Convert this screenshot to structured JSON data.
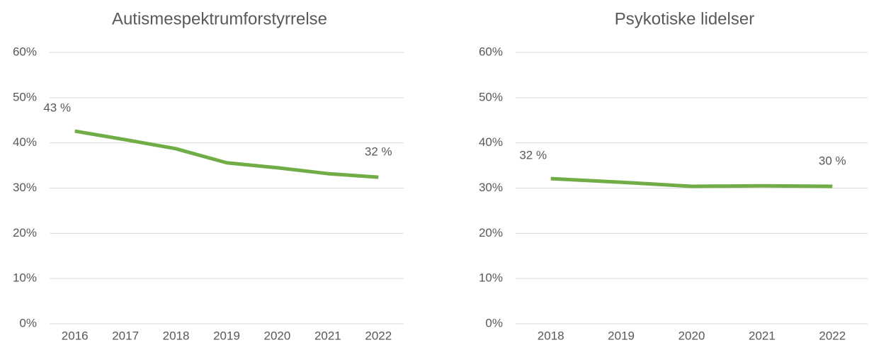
{
  "chart_data": [
    {
      "type": "line",
      "title": "Autismespektrumforstyrrelse",
      "categories": [
        "2016",
        "2017",
        "2018",
        "2019",
        "2020",
        "2021",
        "2022"
      ],
      "values": [
        42.6,
        40.7,
        38.7,
        35.6,
        34.5,
        33.2,
        32.4
      ],
      "value_labels": [
        "43 %",
        null,
        null,
        null,
        null,
        null,
        "32 %"
      ],
      "color": "#70ad47",
      "ylim": [
        0,
        60
      ],
      "yticks": [
        {
          "value": 0,
          "label": "0%"
        },
        {
          "value": 10,
          "label": "10%"
        },
        {
          "value": 20,
          "label": "20%"
        },
        {
          "value": 30,
          "label": "30%"
        },
        {
          "value": 40,
          "label": "40%"
        },
        {
          "value": 50,
          "label": "50%"
        },
        {
          "value": 60,
          "label": "60%"
        }
      ],
      "grid": true
    },
    {
      "type": "line",
      "title": "Psykotiske lidelser",
      "categories": [
        "2018",
        "2019",
        "2020",
        "2021",
        "2022"
      ],
      "values": [
        32.1,
        31.3,
        30.4,
        30.5,
        30.4
      ],
      "value_labels": [
        "32 %",
        null,
        null,
        null,
        "30 %"
      ],
      "color": "#70ad47",
      "ylim": [
        0,
        60
      ],
      "yticks": [
        {
          "value": 0,
          "label": "0%"
        },
        {
          "value": 10,
          "label": "10%"
        },
        {
          "value": 20,
          "label": "20%"
        },
        {
          "value": 30,
          "label": "30%"
        },
        {
          "value": 40,
          "label": "40%"
        },
        {
          "value": 50,
          "label": "50%"
        },
        {
          "value": 60,
          "label": "60%"
        }
      ],
      "grid": true
    }
  ]
}
